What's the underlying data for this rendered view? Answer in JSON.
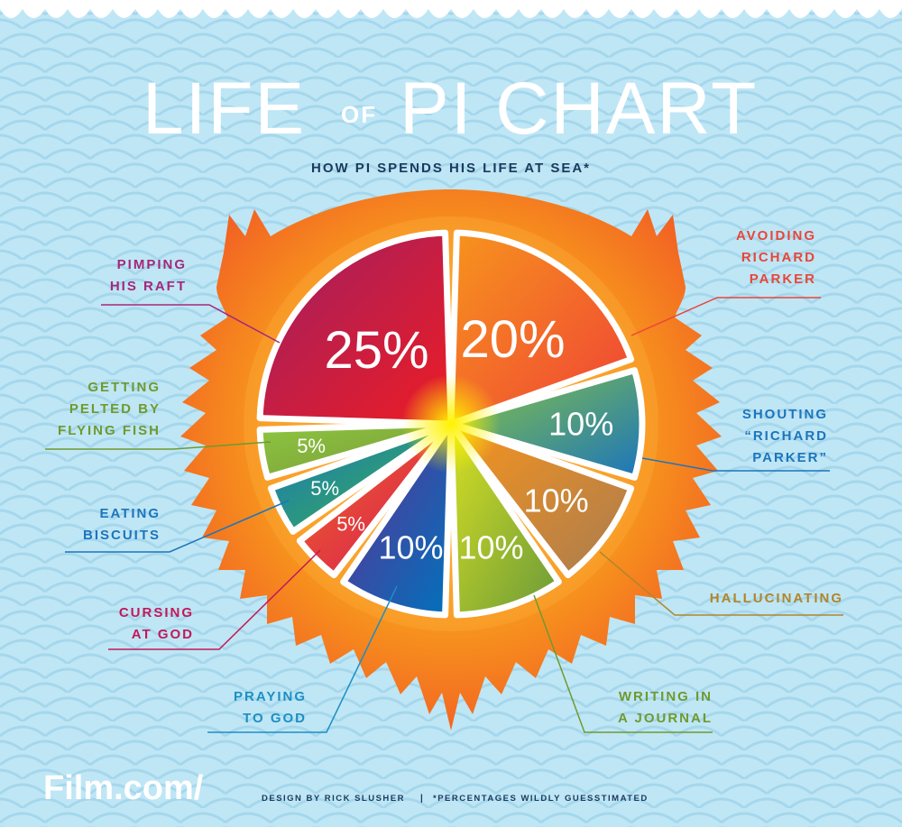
{
  "title": {
    "word1": "LIFE",
    "word2": "OF",
    "word3": "PI CHART"
  },
  "subtitle": "HOW PI SPENDS HIS LIFE AT SEA*",
  "footer": {
    "logo": "Film.com/",
    "credit": "DESIGN BY RICK SLUSHER",
    "separator": "|",
    "note": "*PERCENTAGES WILDLY GUESSTIMATED"
  },
  "colors": {
    "background": "#bfe6f5",
    "wave": "#a9d9ee",
    "mane_outer": "#f26a21",
    "mane_inner": "#fbb03b",
    "divider": "#ffffff",
    "center_glow": "#fff200"
  },
  "chart_data": {
    "type": "pie",
    "title": "",
    "unit": "%",
    "slices": [
      {
        "label": [
          "AVOIDING",
          "RICHARD",
          "PARKER"
        ],
        "value": 20,
        "display": "20%",
        "color_a": "#f7941d",
        "color_b": "#ef4136",
        "label_color": "#e8463a"
      },
      {
        "label": [
          "SHOUTING",
          "“RICHARD",
          "PARKER”"
        ],
        "value": 10,
        "display": "10%",
        "color_a": "#8dc63f",
        "color_b": "#1b75bc",
        "label_color": "#1c75bc"
      },
      {
        "label": [
          "HALLUCINATING"
        ],
        "value": 10,
        "display": "10%",
        "color_a": "#f7941d",
        "color_b": "#a97c50",
        "label_color": "#b0862a"
      },
      {
        "label": [
          "WRITING IN",
          "A JOURNAL"
        ],
        "value": 10,
        "display": "10%",
        "color_a": "#d7df23",
        "color_b": "#6a9a3a",
        "label_color": "#6f9a2e"
      },
      {
        "label": [
          "PRAYING",
          "TO GOD"
        ],
        "value": 10,
        "display": "10%",
        "color_a": "#662d91",
        "color_b": "#0072bc",
        "label_color": "#1c8fc4"
      },
      {
        "label": [
          "CURSING",
          "AT GOD"
        ],
        "value": 5,
        "display": "5%",
        "color_a": "#f26a21",
        "color_b": "#d4145a",
        "label_color": "#c2185b"
      },
      {
        "label": [
          "EATING",
          "BISCUITS"
        ],
        "value": 5,
        "display": "5%",
        "color_a": "#1b75bc",
        "color_b": "#39b54a",
        "label_color": "#1c75bc"
      },
      {
        "label": [
          "GETTING",
          "PELTED BY",
          "FLYING FISH"
        ],
        "value": 5,
        "display": "5%",
        "color_a": "#8dc63f",
        "color_b": "#7a9a3a",
        "label_color": "#6f9a2e"
      },
      {
        "label": [
          "PIMPING",
          "HIS RAFT"
        ],
        "value": 25,
        "display": "25%",
        "color_a": "#9e1f63",
        "color_b": "#ed1c24",
        "label_color": "#a3287a"
      }
    ]
  }
}
